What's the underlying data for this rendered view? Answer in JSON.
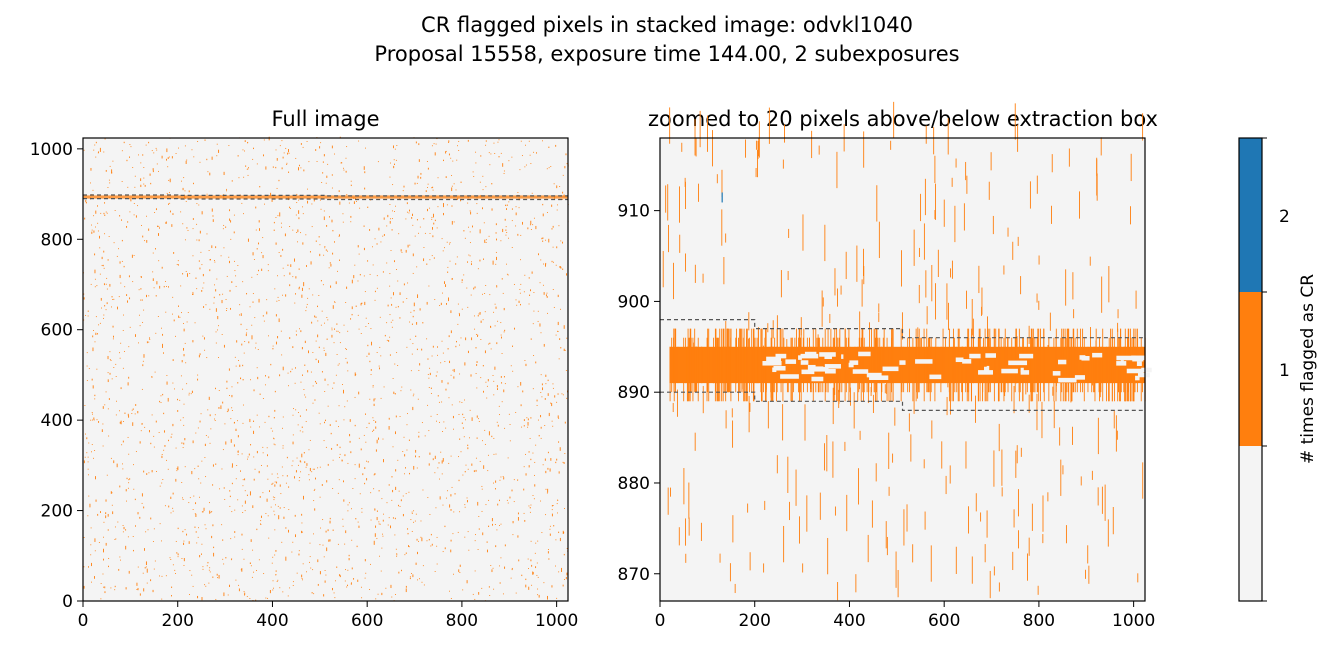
{
  "figure": {
    "title_line1": "CR flagged pixels in stacked image: odvkl1040",
    "title_line2": "Proposal 15558, exposure time 144.00, 2 subexposures"
  },
  "colors": {
    "background": "#f4f4f4",
    "flag1": "#ff7f0e",
    "flag2": "#1f77b4",
    "box_line": "#555555",
    "axis": "#000000"
  },
  "chart_data": [
    {
      "type": "heatmap",
      "title": "Full image",
      "xlim": [
        0,
        1024
      ],
      "ylim": [
        0,
        1024
      ],
      "xticks": [
        0,
        200,
        400,
        600,
        800,
        1000
      ],
      "yticks": [
        0,
        200,
        400,
        600,
        800,
        1000
      ],
      "extraction_box_upper": [
        [
          0,
          898
        ],
        [
          200,
          897
        ],
        [
          512,
          896
        ],
        [
          1024,
          895
        ]
      ],
      "extraction_box_lower": [
        [
          0,
          890
        ],
        [
          200,
          889
        ],
        [
          512,
          888
        ],
        [
          1024,
          887
        ]
      ],
      "flag_band_y": [
        890,
        897
      ]
    },
    {
      "type": "heatmap",
      "title": "zoomed to 20 pixels above/below extraction box",
      "xlim": [
        0,
        1024
      ],
      "ylim": [
        867,
        918
      ],
      "xticks": [
        0,
        200,
        400,
        600,
        800,
        1000
      ],
      "yticks": [
        870,
        880,
        890,
        900,
        910
      ],
      "extraction_box_upper": [
        [
          0,
          898
        ],
        [
          200,
          897
        ],
        [
          512,
          896
        ],
        [
          1024,
          895
        ]
      ],
      "extraction_box_lower": [
        [
          0,
          890
        ],
        [
          200,
          889
        ],
        [
          512,
          888
        ],
        [
          1024,
          887
        ]
      ],
      "flag_band_y": [
        890,
        897
      ]
    }
  ],
  "colorbar": {
    "label": "# times flagged as CR",
    "ticks": [
      "1",
      "2"
    ],
    "levels": [
      0,
      1,
      2
    ]
  }
}
